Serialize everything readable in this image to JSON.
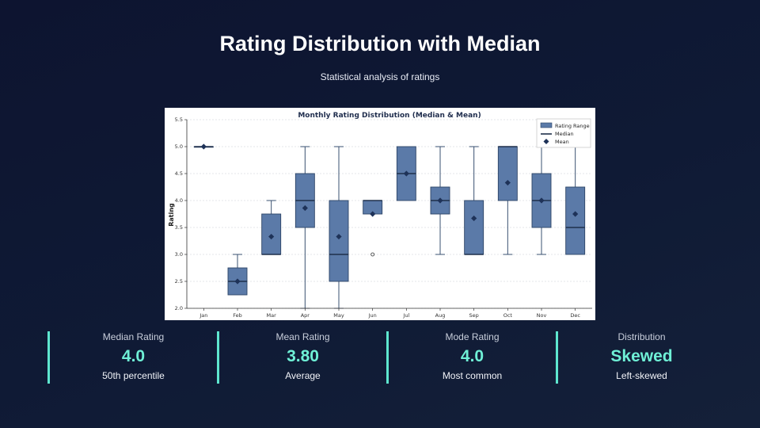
{
  "slide": {
    "title": "Rating Distribution with Median",
    "subtitle": "Statistical analysis of ratings"
  },
  "chart_data": {
    "type": "box",
    "title": "Monthly Rating Distribution (Median & Mean)",
    "xlabel": "",
    "ylabel": "Rating",
    "ylim": [
      2.0,
      5.5
    ],
    "yticks": [
      "2.0",
      "2.5",
      "3.0",
      "3.5",
      "4.0",
      "4.5",
      "5.0",
      "5.5"
    ],
    "grid": true,
    "legend_position": "top-right",
    "legend": [
      "Rating Range",
      "Median",
      "Mean"
    ],
    "categories": [
      "Jan",
      "Feb",
      "Mar",
      "Apr",
      "May",
      "Jun",
      "Jul",
      "Aug",
      "Sep",
      "Oct",
      "Nov",
      "Dec"
    ],
    "boxes": [
      {
        "min": 5.0,
        "q1": 5.0,
        "median": 5.0,
        "q3": 5.0,
        "max": 5.0,
        "mean": 5.0,
        "outliers": []
      },
      {
        "min": 2.25,
        "q1": 2.25,
        "median": 2.5,
        "q3": 2.75,
        "max": 3.0,
        "mean": 2.5,
        "outliers": []
      },
      {
        "min": 3.0,
        "q1": 3.0,
        "median": 3.0,
        "q3": 3.75,
        "max": 4.0,
        "mean": 3.33,
        "outliers": []
      },
      {
        "min": 2.0,
        "q1": 3.5,
        "median": 4.0,
        "q3": 4.5,
        "max": 5.0,
        "mean": 3.86,
        "outliers": []
      },
      {
        "min": 2.0,
        "q1": 2.5,
        "median": 3.0,
        "q3": 4.0,
        "max": 5.0,
        "mean": 3.33,
        "outliers": []
      },
      {
        "min": 3.75,
        "q1": 3.75,
        "median": 4.0,
        "q3": 4.0,
        "max": 4.0,
        "mean": 3.75,
        "outliers": [
          3.0
        ]
      },
      {
        "min": 4.0,
        "q1": 4.0,
        "median": 4.5,
        "q3": 5.0,
        "max": 5.0,
        "mean": 4.5,
        "outliers": []
      },
      {
        "min": 3.0,
        "q1": 3.75,
        "median": 4.0,
        "q3": 4.25,
        "max": 5.0,
        "mean": 4.0,
        "outliers": []
      },
      {
        "min": 3.0,
        "q1": 3.0,
        "median": 3.0,
        "q3": 4.0,
        "max": 5.0,
        "mean": 3.67,
        "outliers": []
      },
      {
        "min": 3.0,
        "q1": 4.0,
        "median": 5.0,
        "q3": 5.0,
        "max": 5.0,
        "mean": 4.33,
        "outliers": []
      },
      {
        "min": 3.0,
        "q1": 3.5,
        "median": 4.0,
        "q3": 4.5,
        "max": 5.0,
        "mean": 4.0,
        "outliers": []
      },
      {
        "min": 3.0,
        "q1": 3.0,
        "median": 3.5,
        "q3": 4.25,
        "max": 5.0,
        "mean": 3.75,
        "outliers": []
      }
    ],
    "colors": {
      "box_fill": "#5b7aa8",
      "box_edge": "#2c4466",
      "median": "#1e2f4a",
      "mean": "#1e3258",
      "whisker": "#3a5070",
      "grid": "#c8cdd6",
      "axis": "#333333"
    }
  },
  "stats": [
    {
      "label": "Median Rating",
      "value": "4.0",
      "note": "50th percentile"
    },
    {
      "label": "Mean Rating",
      "value": "3.80",
      "note": "Average"
    },
    {
      "label": "Mode Rating",
      "value": "4.0",
      "note": "Most common"
    },
    {
      "label": "Distribution",
      "value": "Skewed",
      "note": "Left-skewed"
    }
  ]
}
